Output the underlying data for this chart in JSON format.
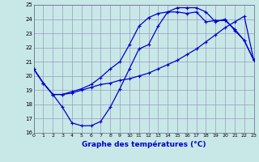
{
  "title": "Graphe des températures (°C)",
  "bg": "#c8e8e8",
  "grid_color": "#9999bb",
  "lc": "#0000cc",
  "xlim": [
    0,
    23
  ],
  "ylim": [
    16,
    25
  ],
  "xticks": [
    0,
    1,
    2,
    3,
    4,
    5,
    6,
    7,
    8,
    9,
    10,
    11,
    12,
    13,
    14,
    15,
    16,
    17,
    18,
    19,
    20,
    21,
    22,
    23
  ],
  "yticks": [
    16,
    17,
    18,
    19,
    20,
    21,
    22,
    23,
    24,
    25
  ],
  "line_dip": [
    20.5,
    19.5,
    18.7,
    17.8,
    16.7,
    16.5,
    16.5,
    16.8,
    17.8,
    19.1,
    20.5,
    21.9,
    22.2,
    23.5,
    24.5,
    24.8,
    24.8,
    24.8,
    24.5,
    23.8,
    24.0,
    23.2,
    22.5,
    21.1
  ],
  "line_diag": [
    20.5,
    19.5,
    18.7,
    18.7,
    18.8,
    19.0,
    19.2,
    19.4,
    19.5,
    19.7,
    19.8,
    20.0,
    20.2,
    20.5,
    20.8,
    21.1,
    21.5,
    21.9,
    22.4,
    22.9,
    23.4,
    23.8,
    24.2,
    21.1
  ],
  "line_arc": [
    20.5,
    19.5,
    18.7,
    18.7,
    18.9,
    19.1,
    19.4,
    19.9,
    20.5,
    21.0,
    22.2,
    23.5,
    24.1,
    24.4,
    24.5,
    24.5,
    24.4,
    24.5,
    23.8,
    23.9,
    23.9,
    23.3,
    22.5,
    21.1
  ]
}
